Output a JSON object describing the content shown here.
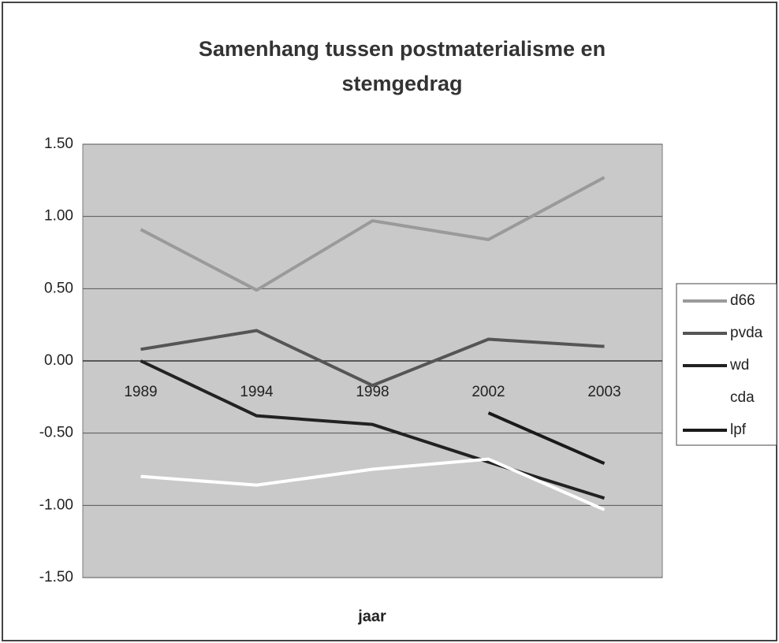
{
  "chart_data": {
    "type": "line",
    "title": "Samenhang tussen postmaterialisme en stemgedrag",
    "x_label": "jaar",
    "categories": [
      "1989",
      "1994",
      "1998",
      "2002",
      "2003"
    ],
    "series": [
      {
        "name": "d66",
        "color": "#9a9a9a",
        "values": [
          0.91,
          0.49,
          0.97,
          0.84,
          1.27
        ]
      },
      {
        "name": "pvda",
        "color": "#555555",
        "values": [
          0.08,
          0.21,
          -0.17,
          0.15,
          0.1
        ]
      },
      {
        "name": "wd",
        "color": "#222222",
        "values": [
          0.0,
          -0.38,
          -0.44,
          -0.7,
          -0.95
        ]
      },
      {
        "name": "cda",
        "color": "#ffffff",
        "values": [
          -0.8,
          -0.86,
          -0.75,
          -0.68,
          -1.03
        ]
      },
      {
        "name": "lpf",
        "color": "#1a1a1a",
        "values": [
          null,
          null,
          null,
          -0.36,
          -0.71
        ]
      }
    ],
    "ylim": [
      -1.5,
      1.5
    ],
    "yticks": [
      {
        "value": -1.5,
        "label": "-1.50"
      },
      {
        "value": -1,
        "label": "-1.00"
      },
      {
        "value": -0.5,
        "label": "-0.50"
      },
      {
        "value": 0,
        "label": "0.00"
      },
      {
        "value": 0.5,
        "label": "0.50"
      },
      {
        "value": 1,
        "label": "1.00"
      },
      {
        "value": 1.5,
        "label": "1.50"
      }
    ],
    "grid": true
  }
}
